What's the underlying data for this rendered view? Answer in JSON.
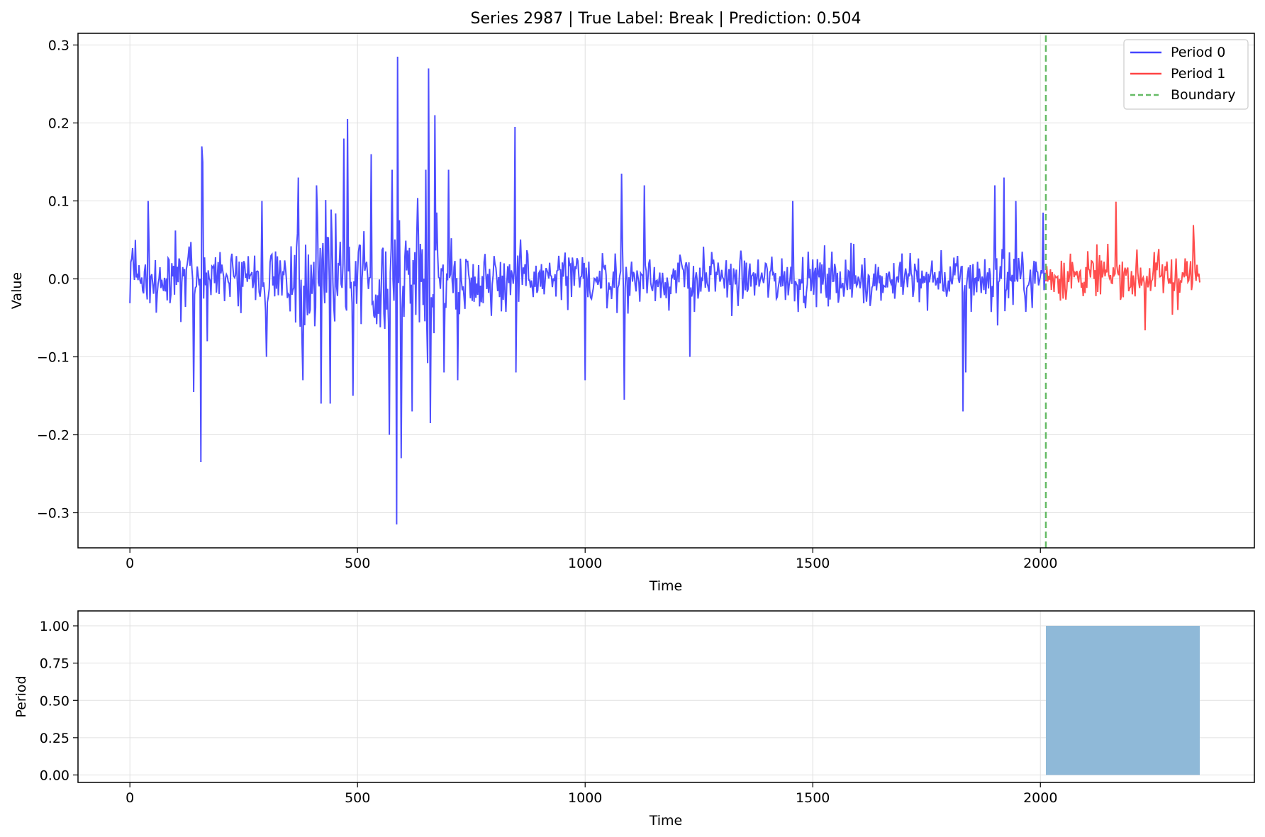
{
  "colors": {
    "period0": "#4444ff",
    "period1": "#ff4444",
    "boundary": "#66bb66",
    "period_fill": "#8fb9d8",
    "grid": "#e0e0e0",
    "axis": "#000000"
  },
  "chart_data": [
    {
      "type": "line",
      "title": "Series 2987 | True Label: Break | Prediction: 0.504",
      "xlabel": "Time",
      "ylabel": "Value",
      "xlim": [
        -114,
        2470
      ],
      "ylim": [
        -0.345,
        0.315
      ],
      "x_ticks": [
        0,
        500,
        1000,
        1500,
        2000
      ],
      "x_tick_labels": [
        "0",
        "500",
        "1000",
        "1500",
        "2000"
      ],
      "y_ticks": [
        -0.3,
        -0.2,
        -0.1,
        0.0,
        0.1,
        0.2,
        0.3
      ],
      "y_tick_labels": [
        "−0.3",
        "−0.2",
        "−0.1",
        "0.0",
        "0.1",
        "0.2",
        "0.3"
      ],
      "grid": true,
      "legend_position": "top-right",
      "series": [
        {
          "name": "Period 0",
          "color": "#4444ff",
          "style": "solid",
          "x_range": [
            0,
            2012
          ],
          "approx_std": 0.035,
          "peaks": [
            [
              12,
              0.05
            ],
            [
              40,
              0.1
            ],
            [
              100,
              0.062
            ],
            [
              140,
              -0.145
            ],
            [
              155,
              -0.235
            ],
            [
              158,
              0.17
            ],
            [
              160,
              0.15
            ],
            [
              170,
              -0.08
            ],
            [
              290,
              0.1
            ],
            [
              300,
              -0.1
            ],
            [
              370,
              0.13
            ],
            [
              380,
              -0.13
            ],
            [
              410,
              0.12
            ],
            [
              420,
              -0.16
            ],
            [
              440,
              -0.16
            ],
            [
              470,
              0.18
            ],
            [
              478,
              0.205
            ],
            [
              490,
              -0.15
            ],
            [
              530,
              0.16
            ],
            [
              570,
              -0.2
            ],
            [
              575,
              0.14
            ],
            [
              585,
              -0.315
            ],
            [
              588,
              0.285
            ],
            [
              595,
              -0.23
            ],
            [
              620,
              -0.17
            ],
            [
              650,
              0.14
            ],
            [
              655,
              0.27
            ],
            [
              660,
              -0.185
            ],
            [
              670,
              0.21
            ],
            [
              690,
              -0.12
            ],
            [
              700,
              0.14
            ],
            [
              720,
              -0.13
            ],
            [
              845,
              0.195
            ],
            [
              848,
              -0.12
            ],
            [
              1000,
              -0.13
            ],
            [
              1080,
              0.135
            ],
            [
              1085,
              -0.155
            ],
            [
              1130,
              0.12
            ],
            [
              1230,
              -0.1
            ],
            [
              1455,
              0.1
            ],
            [
              1830,
              -0.17
            ],
            [
              1835,
              -0.12
            ],
            [
              1900,
              0.12
            ],
            [
              1920,
              0.13
            ],
            [
              1945,
              0.1
            ],
            [
              2005,
              0.085
            ]
          ]
        },
        {
          "name": "Period 1",
          "color": "#ff4444",
          "style": "solid",
          "x_range": [
            2012,
            2350
          ],
          "approx_std": 0.022,
          "peaks": [
            [
              2165,
              0.095
            ],
            [
              2230,
              -0.07
            ],
            [
              2290,
              -0.05
            ],
            [
              2335,
              0.065
            ]
          ]
        },
        {
          "name": "Boundary",
          "color": "#66bb66",
          "style": "dashed",
          "x": [
            2012,
            2012
          ],
          "y": [
            -0.345,
            0.315
          ]
        }
      ]
    },
    {
      "type": "area",
      "xlabel": "Time",
      "ylabel": "Period",
      "xlim": [
        -114,
        2470
      ],
      "ylim": [
        -0.05,
        1.1
      ],
      "x_ticks": [
        0,
        500,
        1000,
        1500,
        2000
      ],
      "x_tick_labels": [
        "0",
        "500",
        "1000",
        "1500",
        "2000"
      ],
      "y_ticks": [
        0.0,
        0.25,
        0.5,
        0.75,
        1.0
      ],
      "y_tick_labels": [
        "0.00",
        "0.25",
        "0.50",
        "0.75",
        "1.00"
      ],
      "grid": true,
      "series": [
        {
          "x": [
            0,
            2012,
            2012,
            2350
          ],
          "y": [
            0,
            0,
            1,
            1
          ],
          "color": "#8fb9d8"
        }
      ]
    }
  ]
}
